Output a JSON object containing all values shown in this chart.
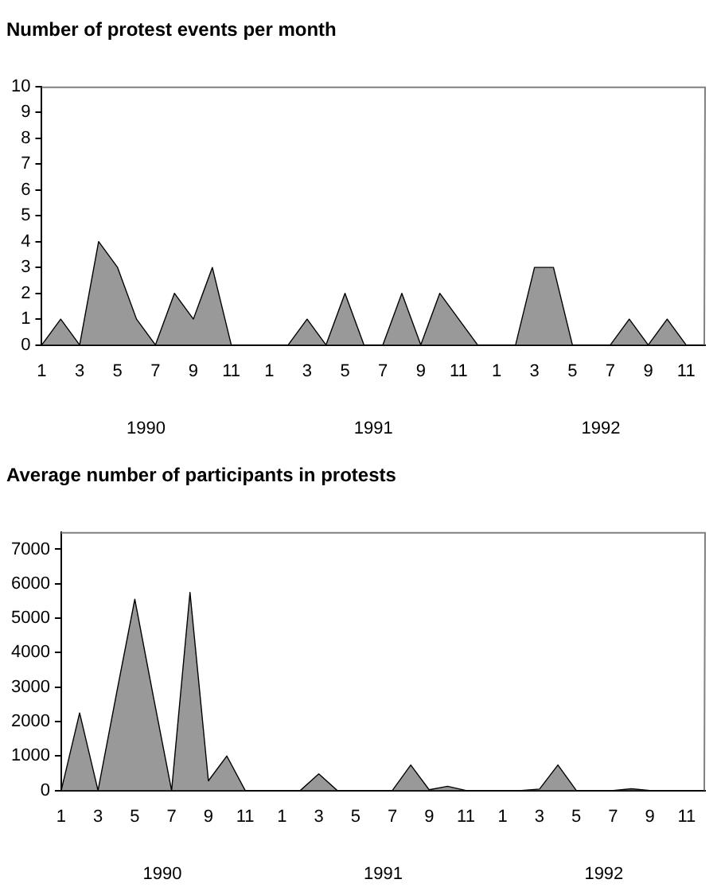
{
  "chart_data": [
    {
      "type": "area",
      "title": "Number of protest events per month",
      "categories": [
        "1",
        null,
        "3",
        null,
        "5",
        null,
        "7",
        null,
        "9",
        null,
        "11",
        null,
        "1",
        null,
        "3",
        null,
        "5",
        null,
        "7",
        null,
        "9",
        null,
        "11",
        null,
        "1",
        null,
        "3",
        null,
        "5",
        null,
        "7",
        null,
        "9",
        null,
        "11",
        null
      ],
      "series": [
        {
          "color": "#999999",
          "values": [
            0,
            1,
            0,
            4,
            3,
            1,
            0,
            2,
            1,
            3,
            0,
            0,
            0,
            0,
            1,
            0,
            2,
            0,
            0,
            2,
            0,
            2,
            1,
            0,
            0,
            0,
            3,
            3,
            0,
            0,
            0,
            1,
            0,
            1,
            0,
            0
          ]
        }
      ],
      "ylim": [
        0,
        10
      ],
      "yticks": [
        0,
        1,
        2,
        3,
        4,
        5,
        6,
        7,
        8,
        9,
        10
      ],
      "grid": false,
      "legend": false,
      "annotations": [
        "1990",
        "1991",
        "1992"
      ]
    },
    {
      "type": "area",
      "title": "Average number of participants in protests",
      "categories": [
        "1",
        null,
        "3",
        null,
        "5",
        null,
        "7",
        null,
        "9",
        null,
        "11",
        null,
        "1",
        null,
        "3",
        null,
        "5",
        null,
        "7",
        null,
        "9",
        null,
        "11",
        null,
        "1",
        null,
        "3",
        null,
        "5",
        null,
        "7",
        null,
        "9",
        null,
        "11",
        null
      ],
      "series": [
        {
          "color": "#999999",
          "values": [
            0,
            2250,
            0,
            2800,
            5550,
            2750,
            0,
            5750,
            280,
            1000,
            0,
            0,
            0,
            0,
            480,
            0,
            0,
            0,
            0,
            740,
            20,
            120,
            0,
            0,
            0,
            0,
            40,
            740,
            0,
            0,
            0,
            50,
            0,
            0,
            0,
            0
          ]
        }
      ],
      "ylim": [
        0,
        7500
      ],
      "yticks": [
        0,
        1000,
        2000,
        3000,
        4000,
        5000,
        6000,
        7000
      ],
      "grid": false,
      "legend": false,
      "annotations": [
        "1990",
        "1991",
        "1992"
      ]
    }
  ]
}
